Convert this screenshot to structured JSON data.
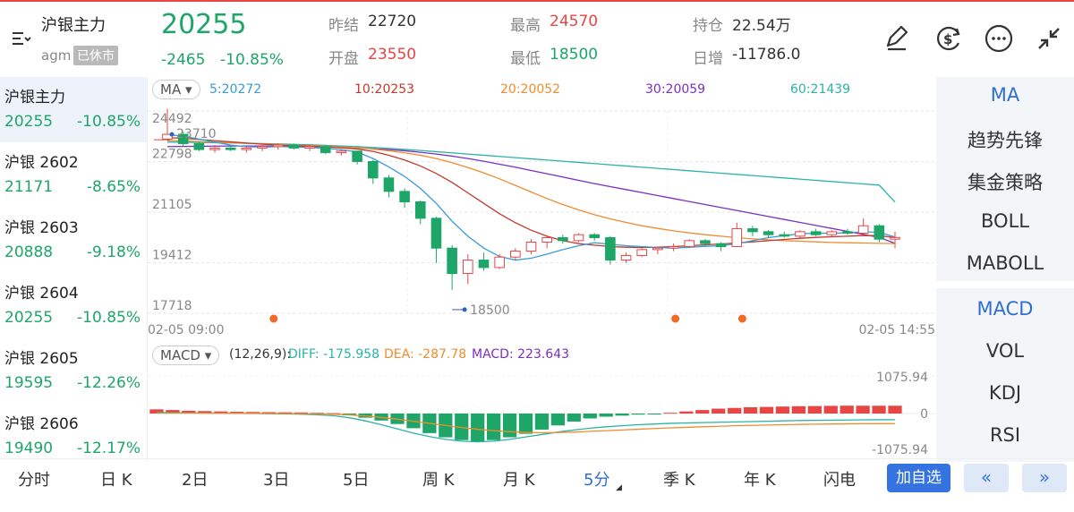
{
  "header": {
    "title": "沪银主力",
    "code": "agm",
    "status": "已休市",
    "price": "20255",
    "change": "-2465",
    "change_pct": "-10.85%",
    "prev_close_label": "昨结",
    "prev_close": "22720",
    "open_label": "开盘",
    "open": "23550",
    "high_label": "最高",
    "high": "24570",
    "low_label": "最低",
    "low": "18500",
    "oi_label": "持仓",
    "oi": "22.54万",
    "daily_inc_label": "日增",
    "daily_inc": "-11786.0"
  },
  "icons": [
    "menu-icon",
    "draw-icon",
    "currency-icon",
    "more-icon",
    "collapse-icon"
  ],
  "sidebar": [
    {
      "name": "沪银主力",
      "price": "20255",
      "chg": "-10.85%"
    },
    {
      "name": "沪银 2602",
      "price": "21171",
      "chg": "-8.65%"
    },
    {
      "name": "沪银 2603",
      "price": "20888",
      "chg": "-9.18%"
    },
    {
      "name": "沪银 2604",
      "price": "20255",
      "chg": "-10.85%"
    },
    {
      "name": "沪银 2605",
      "price": "19595",
      "chg": "-12.26%"
    },
    {
      "name": "沪银 2606",
      "price": "19490",
      "chg": "-12.17%"
    }
  ],
  "ma_bar": {
    "selector": "MA",
    "ma5": "5:20272",
    "ma10": "10:20253",
    "ma20": "20:20052",
    "ma30": "30:20059",
    "ma60": "60:21439"
  },
  "macd_bar": {
    "selector": "MACD",
    "params": "(12,26,9):",
    "diff": "DIFF: -175.958",
    "dea": "DEA: -287.78",
    "macd": "MACD: 223.643"
  },
  "colors": {
    "up": "#e84545",
    "down": "#1da667",
    "accent": "#3574e0",
    "ma5": "#3a9ad9",
    "ma10": "#c0392b",
    "ma20": "#f08c2e",
    "ma30": "#7b2fbf",
    "ma60": "#2ab3a6"
  },
  "chart_data": {
    "type": "candlestick",
    "price_ticks": [
      "24492",
      "22798",
      "21105",
      "19412",
      "17718"
    ],
    "ylim": [
      17718,
      24492
    ],
    "time_start": "02-05 09:00",
    "time_end": "02-05 14:55",
    "high_mark": "23710",
    "low_mark": "18500",
    "candles": [
      {
        "o": 23550,
        "h": 24570,
        "l": 23500,
        "c": 23710
      },
      {
        "o": 23710,
        "h": 23800,
        "l": 23300,
        "c": 23400
      },
      {
        "o": 23400,
        "h": 23450,
        "l": 23150,
        "c": 23200
      },
      {
        "o": 23200,
        "h": 23350,
        "l": 23100,
        "c": 23250
      },
      {
        "o": 23250,
        "h": 23350,
        "l": 23150,
        "c": 23200
      },
      {
        "o": 23200,
        "h": 23300,
        "l": 23100,
        "c": 23250
      },
      {
        "o": 23250,
        "h": 23350,
        "l": 23150,
        "c": 23300
      },
      {
        "o": 23300,
        "h": 23400,
        "l": 23200,
        "c": 23350
      },
      {
        "o": 23350,
        "h": 23400,
        "l": 23200,
        "c": 23250
      },
      {
        "o": 23250,
        "h": 23350,
        "l": 23150,
        "c": 23300
      },
      {
        "o": 23300,
        "h": 23350,
        "l": 23050,
        "c": 23100
      },
      {
        "o": 23100,
        "h": 23200,
        "l": 23000,
        "c": 23150
      },
      {
        "o": 23150,
        "h": 23150,
        "l": 22700,
        "c": 22800
      },
      {
        "o": 22800,
        "h": 22850,
        "l": 22050,
        "c": 22250
      },
      {
        "o": 22250,
        "h": 22350,
        "l": 21600,
        "c": 21800
      },
      {
        "o": 21800,
        "h": 21900,
        "l": 21250,
        "c": 21450
      },
      {
        "o": 21450,
        "h": 21500,
        "l": 20700,
        "c": 20900
      },
      {
        "o": 20900,
        "h": 20950,
        "l": 19400,
        "c": 19900
      },
      {
        "o": 19900,
        "h": 20000,
        "l": 18500,
        "c": 19050
      },
      {
        "o": 19050,
        "h": 19700,
        "l": 18700,
        "c": 19500
      },
      {
        "o": 19500,
        "h": 19750,
        "l": 19150,
        "c": 19250
      },
      {
        "o": 19250,
        "h": 19700,
        "l": 19200,
        "c": 19600
      },
      {
        "o": 19600,
        "h": 19900,
        "l": 19500,
        "c": 19800
      },
      {
        "o": 19800,
        "h": 20200,
        "l": 19700,
        "c": 20100
      },
      {
        "o": 20100,
        "h": 20300,
        "l": 19900,
        "c": 20250
      },
      {
        "o": 20250,
        "h": 20350,
        "l": 20050,
        "c": 20150
      },
      {
        "o": 20150,
        "h": 20400,
        "l": 20100,
        "c": 20350
      },
      {
        "o": 20350,
        "h": 20400,
        "l": 20150,
        "c": 20250
      },
      {
        "o": 20250,
        "h": 20300,
        "l": 19350,
        "c": 19500
      },
      {
        "o": 19500,
        "h": 19750,
        "l": 19400,
        "c": 19650
      },
      {
        "o": 19650,
        "h": 19900,
        "l": 19600,
        "c": 19850
      },
      {
        "o": 19850,
        "h": 19950,
        "l": 19700,
        "c": 19900
      },
      {
        "o": 19900,
        "h": 20050,
        "l": 19800,
        "c": 19950
      },
      {
        "o": 19950,
        "h": 20200,
        "l": 19900,
        "c": 20150
      },
      {
        "o": 20150,
        "h": 20200,
        "l": 19950,
        "c": 20050
      },
      {
        "o": 20050,
        "h": 20100,
        "l": 19800,
        "c": 19950
      },
      {
        "o": 19950,
        "h": 20750,
        "l": 19950,
        "c": 20550
      },
      {
        "o": 20550,
        "h": 20650,
        "l": 20300,
        "c": 20450
      },
      {
        "o": 20450,
        "h": 20500,
        "l": 20250,
        "c": 20350
      },
      {
        "o": 20350,
        "h": 20450,
        "l": 20250,
        "c": 20300
      },
      {
        "o": 20300,
        "h": 20500,
        "l": 20250,
        "c": 20450
      },
      {
        "o": 20450,
        "h": 20550,
        "l": 20300,
        "c": 20350
      },
      {
        "o": 20350,
        "h": 20500,
        "l": 20300,
        "c": 20450
      },
      {
        "o": 20450,
        "h": 20550,
        "l": 20350,
        "c": 20400
      },
      {
        "o": 20400,
        "h": 20900,
        "l": 20350,
        "c": 20650
      },
      {
        "o": 20650,
        "h": 20700,
        "l": 20100,
        "c": 20200
      },
      {
        "o": 20200,
        "h": 20450,
        "l": 19900,
        "c": 20255
      }
    ],
    "ma5": [
      23700,
      23650,
      23550,
      23450,
      23350,
      23300,
      23280,
      23300,
      23290,
      23270,
      23240,
      23200,
      23120,
      22900,
      22620,
      22300,
      21900,
      21400,
      20800,
      20300,
      19900,
      19620,
      19500,
      19560,
      19700,
      19850,
      19980,
      20080,
      20030,
      19980,
      19950,
      19920,
      19900,
      19930,
      19960,
      19980,
      20050,
      20150,
      20250,
      20320,
      20380,
      20400,
      20400,
      20410,
      20450,
      20430,
      20272
    ],
    "ma10": [
      23600,
      23580,
      23540,
      23500,
      23460,
      23420,
      23380,
      23350,
      23330,
      23310,
      23290,
      23260,
      23220,
      23140,
      23010,
      22850,
      22650,
      22400,
      22100,
      21750,
      21400,
      21050,
      20750,
      20500,
      20300,
      20150,
      20050,
      20000,
      19950,
      19930,
      19920,
      19930,
      19950,
      19980,
      20010,
      20040,
      20070,
      20110,
      20150,
      20190,
      20230,
      20260,
      20280,
      20300,
      20320,
      20320,
      20253
    ],
    "ma20": [
      23500,
      23490,
      23470,
      23450,
      23430,
      23410,
      23390,
      23370,
      23350,
      23330,
      23310,
      23290,
      23260,
      23220,
      23160,
      23090,
      23010,
      22900,
      22760,
      22600,
      22420,
      22220,
      22000,
      21780,
      21560,
      21360,
      21180,
      21020,
      20880,
      20760,
      20650,
      20560,
      20480,
      20410,
      20350,
      20300,
      20250,
      20210,
      20180,
      20150,
      20130,
      20110,
      20090,
      20080,
      20070,
      20060,
      20052
    ],
    "ma30": [
      23300,
      23305,
      23310,
      23315,
      23320,
      23320,
      23320,
      23315,
      23310,
      23300,
      23290,
      23275,
      23255,
      23230,
      23200,
      23160,
      23110,
      23050,
      22980,
      22900,
      22810,
      22710,
      22610,
      22500,
      22390,
      22280,
      22170,
      22060,
      21960,
      21860,
      21760,
      21660,
      21560,
      21460,
      21360,
      21260,
      21160,
      21060,
      20960,
      20860,
      20760,
      20660,
      20560,
      20460,
      20360,
      20260,
      20059
    ],
    "ma60": [
      23450,
      23445,
      23440,
      23430,
      23420,
      23410,
      23400,
      23390,
      23375,
      23360,
      23340,
      23320,
      23300,
      23270,
      23240,
      23205,
      23170,
      23130,
      23090,
      23050,
      23010,
      22970,
      22930,
      22890,
      22850,
      22810,
      22770,
      22730,
      22690,
      22650,
      22610,
      22570,
      22530,
      22490,
      22450,
      22410,
      22370,
      22330,
      22290,
      22250,
      22210,
      22170,
      22130,
      22090,
      22050,
      22010,
      21439
    ],
    "macd_ticks": [
      "1075.94",
      "0",
      "-1075.94"
    ],
    "macd_ylim": [
      -1075.94,
      1075.94
    ],
    "macd_hist": [
      120,
      100,
      80,
      70,
      60,
      50,
      45,
      40,
      35,
      30,
      20,
      10,
      -50,
      -120,
      -200,
      -300,
      -420,
      -560,
      -680,
      -760,
      -800,
      -760,
      -680,
      -580,
      -460,
      -340,
      -230,
      -140,
      -90,
      -60,
      -30,
      -10,
      20,
      60,
      100,
      140,
      160,
      180,
      190,
      200,
      210,
      215,
      220,
      225,
      224,
      223,
      223.643
    ],
    "macd_dif": [
      30,
      25,
      20,
      15,
      10,
      5,
      0,
      -5,
      -10,
      -20,
      -35,
      -60,
      -120,
      -210,
      -320,
      -440,
      -560,
      -660,
      -740,
      -790,
      -810,
      -790,
      -740,
      -670,
      -600,
      -530,
      -470,
      -420,
      -380,
      -350,
      -320,
      -300,
      -280,
      -270,
      -260,
      -250,
      -240,
      -230,
      -220,
      -210,
      -200,
      -195,
      -190,
      -185,
      -180,
      -178,
      -175.958
    ],
    "macd_dea": [
      10,
      10,
      9,
      8,
      7,
      6,
      5,
      3,
      0,
      -5,
      -10,
      -20,
      -40,
      -70,
      -110,
      -160,
      -220,
      -280,
      -340,
      -400,
      -450,
      -490,
      -520,
      -540,
      -550,
      -545,
      -530,
      -510,
      -490,
      -470,
      -450,
      -430,
      -410,
      -395,
      -380,
      -365,
      -350,
      -340,
      -330,
      -320,
      -312,
      -305,
      -300,
      -296,
      -292,
      -290,
      -287.78
    ]
  },
  "indicators_top": [
    "MA",
    "趋势先锋",
    "集金策略",
    "BOLL",
    "MABOLL"
  ],
  "indicators_bottom": [
    "MACD",
    "VOL",
    "KDJ",
    "RSI"
  ],
  "tabs": [
    "分时",
    "日 K",
    "2日",
    "3日",
    "5日",
    "周 K",
    "月 K",
    "5分",
    "季 K",
    "年 K",
    "闪电"
  ],
  "actions": {
    "add_watch": "加自选",
    "prev": "«",
    "next": "»"
  }
}
